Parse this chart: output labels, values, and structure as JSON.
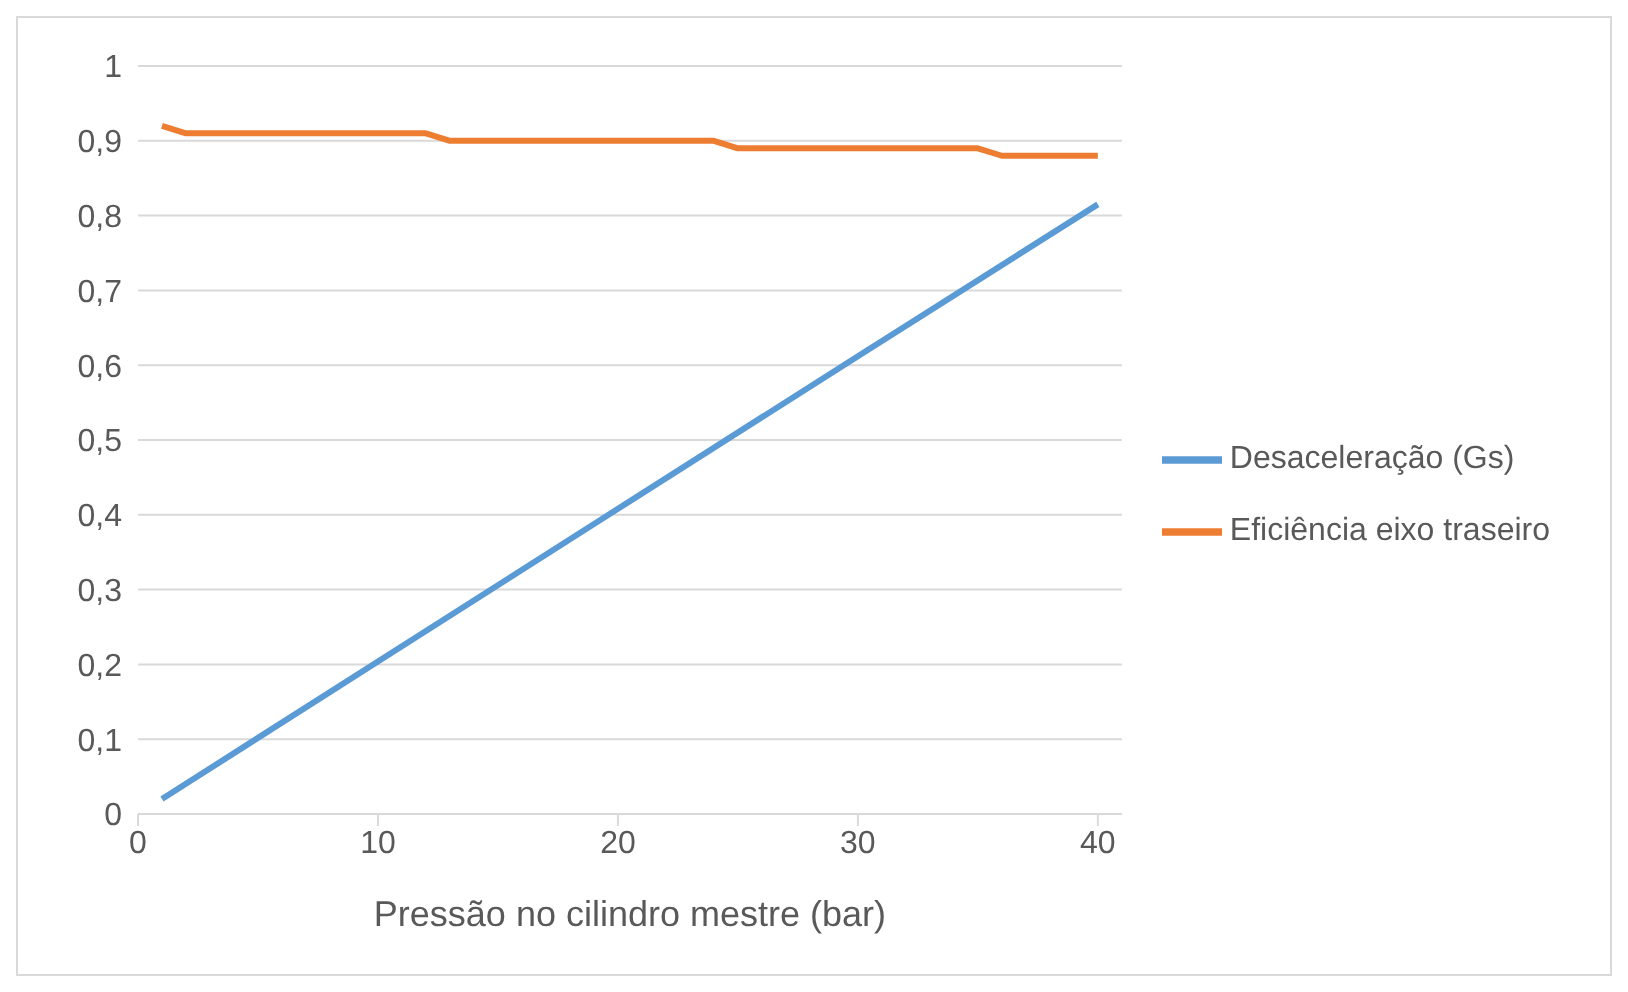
{
  "chart_data": {
    "type": "line",
    "xlabel": "Pressão no cilindro mestre (bar)",
    "xlim": [
      0,
      41
    ],
    "xticks": [
      0,
      10,
      20,
      30,
      40
    ],
    "ylim": [
      0,
      1
    ],
    "yticks": [
      0,
      {
        "value": 0.1,
        "label": "0,1"
      },
      {
        "value": 0.2,
        "label": "0,2"
      },
      {
        "value": 0.3,
        "label": "0,3"
      },
      {
        "value": 0.4,
        "label": "0,4"
      },
      {
        "value": 0.5,
        "label": "0,5"
      },
      {
        "value": 0.6,
        "label": "0,6"
      },
      {
        "value": 0.7,
        "label": "0,7"
      },
      {
        "value": 0.8,
        "label": "0,8"
      },
      {
        "value": 0.9,
        "label": "0,9"
      },
      1
    ],
    "grid": "y",
    "legend": "right",
    "marker": "none",
    "line_style": "solid",
    "series": [
      {
        "name": "Desaceleração (Gs)",
        "color": "#5b9bd5",
        "x": [
          1,
          10,
          20,
          30,
          40
        ],
        "values": [
          0.02,
          0.204,
          0.408,
          0.612,
          0.815
        ]
      },
      {
        "name": "Eficiência eixo traseiro",
        "color": "#ed7d31",
        "x": [
          1,
          2,
          12,
          13,
          24,
          25,
          35,
          36,
          40
        ],
        "values": [
          0.92,
          0.91,
          0.91,
          0.9,
          0.9,
          0.89,
          0.89,
          0.88,
          0.88
        ]
      }
    ]
  }
}
